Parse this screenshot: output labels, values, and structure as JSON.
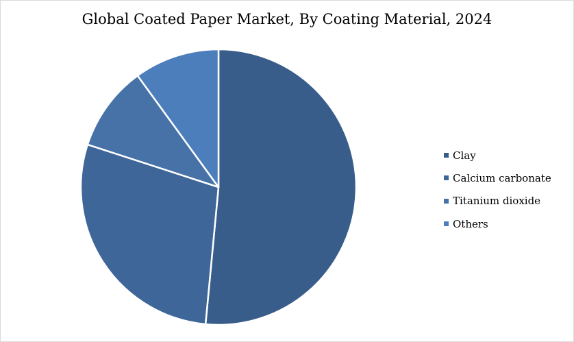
{
  "chart_data": {
    "type": "pie",
    "title": "Global Coated Paper Market, By Coating Material, 2024",
    "categories": [
      "Clay",
      "Calcium carbonate",
      "Titanium dioxide",
      "Others"
    ],
    "values": [
      51.5,
      28.5,
      10.0,
      10.0
    ],
    "unit": "%",
    "start_angle_deg": 0,
    "direction": "clockwise",
    "legend_position": "right",
    "colors": [
      "#385d8a",
      "#3f6699",
      "#4672a8",
      "#4c7ebb"
    ],
    "slice_border_color": "#ffffff"
  }
}
